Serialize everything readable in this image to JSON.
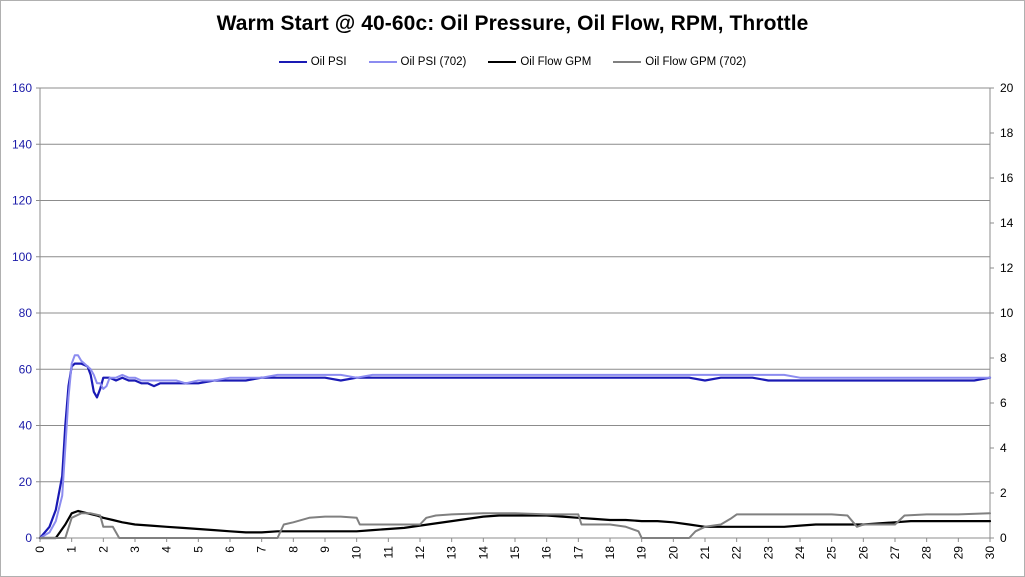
{
  "chart_data": {
    "type": "line",
    "title": "Warm Start @ 40-60c: Oil Pressure, Oil Flow, RPM, Throttle",
    "xlabel": "",
    "ylabel": "",
    "y2label": "",
    "xlim": [
      0,
      30
    ],
    "ylim": [
      0,
      160
    ],
    "y2lim": [
      0,
      20
    ],
    "x_ticks": [
      0,
      1,
      2,
      3,
      4,
      5,
      6,
      7,
      8,
      9,
      10,
      11,
      12,
      13,
      14,
      15,
      16,
      17,
      18,
      19,
      20,
      21,
      22,
      23,
      24,
      25,
      26,
      27,
      28,
      29,
      30
    ],
    "y_ticks": [
      0,
      20,
      40,
      60,
      80,
      100,
      120,
      140,
      160
    ],
    "y2_ticks": [
      0,
      2,
      4,
      6,
      8,
      10,
      12,
      14,
      16,
      18,
      20
    ],
    "grid": "horizontal",
    "legend_position": "top",
    "axis_colors": {
      "left": "#1a1aa8",
      "right": "#000000"
    },
    "series": [
      {
        "name": "Oil PSI",
        "axis": "left",
        "color": "#1a1ab4",
        "x": [
          0,
          0.3,
          0.5,
          0.7,
          0.8,
          0.9,
          1.0,
          1.1,
          1.2,
          1.3,
          1.5,
          1.6,
          1.7,
          1.8,
          1.9,
          2.0,
          2.1,
          2.2,
          2.4,
          2.6,
          2.8,
          3.0,
          3.2,
          3.4,
          3.6,
          3.8,
          4.0,
          4.3,
          4.6,
          5,
          5.5,
          6,
          6.5,
          7,
          7.5,
          8,
          8.5,
          9,
          9.5,
          10,
          10.5,
          11,
          11.5,
          12,
          12.5,
          13,
          13.5,
          14,
          14.5,
          15,
          15.5,
          16,
          16.5,
          17,
          17.5,
          18,
          18.5,
          19,
          19.5,
          20,
          20.5,
          21,
          21.5,
          22,
          22.5,
          23,
          23.5,
          24,
          24.5,
          25,
          25.5,
          26,
          26.5,
          27,
          27.5,
          28,
          28.5,
          29,
          29.5,
          30
        ],
        "y": [
          0,
          4,
          10,
          22,
          40,
          54,
          61,
          62,
          62,
          62,
          61,
          58,
          52,
          50,
          53,
          57,
          57,
          57,
          56,
          57,
          56,
          56,
          55,
          55,
          54,
          55,
          55,
          55,
          55,
          55,
          56,
          56,
          56,
          57,
          57,
          57,
          57,
          57,
          56,
          57,
          57,
          57,
          57,
          57,
          57,
          57,
          57,
          57,
          57,
          57,
          57,
          57,
          57,
          57,
          57,
          57,
          57,
          57,
          57,
          57,
          57,
          56,
          57,
          57,
          57,
          56,
          56,
          56,
          56,
          56,
          56,
          56,
          56,
          56,
          56,
          56,
          56,
          56,
          56,
          57
        ]
      },
      {
        "name": "Oil PSI (702)",
        "axis": "left",
        "color": "#8c8cf0",
        "x": [
          0,
          0.3,
          0.5,
          0.7,
          0.8,
          0.9,
          1.0,
          1.1,
          1.2,
          1.3,
          1.5,
          1.6,
          1.7,
          1.8,
          1.9,
          2.0,
          2.1,
          2.2,
          2.4,
          2.6,
          2.8,
          3.0,
          3.2,
          3.4,
          3.6,
          3.8,
          4.0,
          4.3,
          4.6,
          5,
          5.5,
          6,
          6.5,
          7,
          7.5,
          8,
          8.5,
          9,
          9.5,
          10,
          10.5,
          11,
          11.5,
          12,
          12.5,
          13,
          13.5,
          14,
          14.5,
          15,
          15.5,
          16,
          16.5,
          17,
          17.5,
          18,
          18.5,
          19,
          19.5,
          20,
          20.5,
          21,
          21.5,
          22,
          22.5,
          23,
          23.5,
          24,
          24.5,
          25,
          25.5,
          26,
          26.5,
          27,
          27.5,
          28,
          28.5,
          29,
          29.5,
          30
        ],
        "y": [
          0,
          2,
          6,
          15,
          32,
          50,
          62,
          65,
          65,
          63,
          61,
          60,
          58,
          55,
          55,
          53,
          54,
          57,
          57,
          58,
          57,
          57,
          56,
          56,
          56,
          56,
          56,
          56,
          55,
          56,
          56,
          57,
          57,
          57,
          58,
          58,
          58,
          58,
          58,
          57,
          58,
          58,
          58,
          58,
          58,
          58,
          58,
          58,
          58,
          58,
          58,
          58,
          58,
          58,
          58,
          58,
          58,
          58,
          58,
          58,
          58,
          58,
          58,
          58,
          58,
          58,
          58,
          57,
          57,
          57,
          57,
          57,
          57,
          57,
          57,
          57,
          57,
          57,
          57,
          57
        ]
      },
      {
        "name": "Oil Flow GPM",
        "axis": "right",
        "color": "#000000",
        "x": [
          0,
          0.5,
          0.8,
          1.0,
          1.2,
          1.5,
          1.8,
          2.0,
          2.3,
          2.6,
          3.0,
          3.5,
          4.0,
          4.5,
          5,
          5.5,
          6,
          6.5,
          7,
          7.5,
          8,
          8.5,
          9,
          9.5,
          10,
          10.5,
          11,
          11.5,
          12,
          12.5,
          13,
          13.5,
          14,
          14.5,
          15,
          15.5,
          16,
          16.5,
          17,
          17.5,
          18,
          18.5,
          19,
          19.5,
          20,
          20.5,
          21,
          21.5,
          22,
          22.5,
          23,
          23.5,
          24,
          24.5,
          25,
          25.5,
          26,
          26.5,
          27,
          27.5,
          28,
          28.5,
          29,
          29.5,
          30
        ],
        "y": [
          0,
          0,
          0.6,
          1.1,
          1.2,
          1.1,
          1.0,
          0.9,
          0.8,
          0.7,
          0.6,
          0.55,
          0.5,
          0.45,
          0.4,
          0.35,
          0.3,
          0.25,
          0.25,
          0.3,
          0.3,
          0.3,
          0.3,
          0.3,
          0.3,
          0.35,
          0.4,
          0.45,
          0.55,
          0.65,
          0.75,
          0.85,
          0.95,
          1.0,
          1.0,
          1.0,
          1.0,
          0.95,
          0.9,
          0.85,
          0.8,
          0.8,
          0.75,
          0.75,
          0.7,
          0.6,
          0.5,
          0.5,
          0.5,
          0.5,
          0.5,
          0.5,
          0.55,
          0.6,
          0.6,
          0.6,
          0.6,
          0.65,
          0.7,
          0.75,
          0.75,
          0.75,
          0.75,
          0.75,
          0.75
        ]
      },
      {
        "name": "Oil Flow GPM (702)",
        "axis": "right",
        "color": "#808080",
        "x": [
          0,
          0.8,
          1.0,
          1.3,
          1.6,
          1.9,
          2.0,
          2.3,
          2.5,
          7.5,
          7.7,
          8.0,
          8.5,
          9.0,
          9.5,
          10,
          10.1,
          10.5,
          11,
          11.5,
          12,
          12.2,
          12.5,
          13,
          14,
          15,
          16,
          17,
          17.1,
          18,
          18.5,
          18.9,
          19.0,
          20.5,
          20.7,
          21,
          21.5,
          21.8,
          22,
          23,
          24,
          25,
          25.5,
          25.8,
          26,
          27,
          27.3,
          28,
          29,
          30
        ],
        "y": [
          0,
          0,
          0.9,
          1.1,
          1.1,
          1.0,
          0.5,
          0.5,
          0,
          0,
          0.6,
          0.7,
          0.9,
          0.95,
          0.95,
          0.9,
          0.6,
          0.6,
          0.6,
          0.6,
          0.6,
          0.9,
          1.0,
          1.05,
          1.1,
          1.1,
          1.05,
          1.05,
          0.6,
          0.6,
          0.5,
          0.3,
          0,
          0,
          0.3,
          0.5,
          0.6,
          0.85,
          1.05,
          1.05,
          1.05,
          1.05,
          1.0,
          0.5,
          0.6,
          0.6,
          1.0,
          1.05,
          1.05,
          1.1
        ]
      }
    ]
  }
}
